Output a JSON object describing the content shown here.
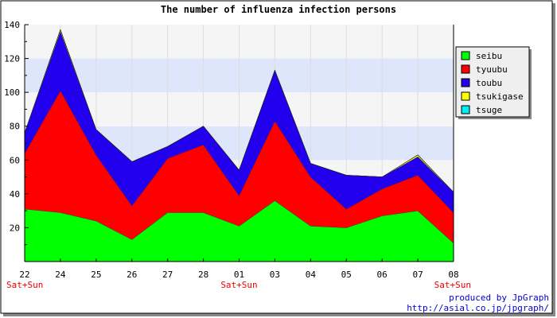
{
  "chart_data": {
    "type": "area",
    "stacked": true,
    "title": "The number of influenza infection persons",
    "x_labels": [
      "22",
      "24",
      "25",
      "26",
      "27",
      "28",
      "01",
      "03",
      "04",
      "05",
      "06",
      "07",
      "08"
    ],
    "weekend_labels": [
      {
        "index": 0,
        "text": "Sat+Sun"
      },
      {
        "index": 6,
        "text": "Sat+Sun"
      },
      {
        "index": 12,
        "text": "Sat+Sun"
      }
    ],
    "ylim": [
      0,
      140
    ],
    "y_ticks": [
      20,
      40,
      60,
      80,
      100,
      120,
      140
    ],
    "grid": true,
    "band_colors": [
      "#f5f5f5",
      "#dde6fb"
    ],
    "legend_position": "right",
    "series": [
      {
        "name": "seibu",
        "color": "#00ff00",
        "values": [
          31,
          29,
          24,
          13,
          29,
          29,
          21,
          36,
          21,
          20,
          27,
          30,
          11
        ]
      },
      {
        "name": "tyuubu",
        "color": "#ff0000",
        "values": [
          33,
          72,
          39,
          20,
          32,
          40,
          18,
          47,
          29,
          11,
          16,
          21,
          18
        ]
      },
      {
        "name": "toubu",
        "color": "#2200ee",
        "values": [
          12,
          35,
          15,
          26,
          7,
          11,
          15,
          30,
          8,
          20,
          7,
          11,
          12
        ]
      },
      {
        "name": "tsukigase",
        "color": "#ffff00",
        "values": [
          0,
          1,
          0,
          0,
          0,
          0,
          0,
          0,
          0,
          0,
          0,
          1,
          0
        ]
      },
      {
        "name": "tsuge",
        "color": "#00eeee",
        "values": [
          0,
          0,
          0,
          0,
          0,
          0,
          0,
          0,
          0,
          0,
          0,
          0,
          0
        ]
      }
    ]
  },
  "credit": {
    "line1": "produced by JpGraph",
    "line2": "http://asial.co.jp/jpgraph/"
  }
}
